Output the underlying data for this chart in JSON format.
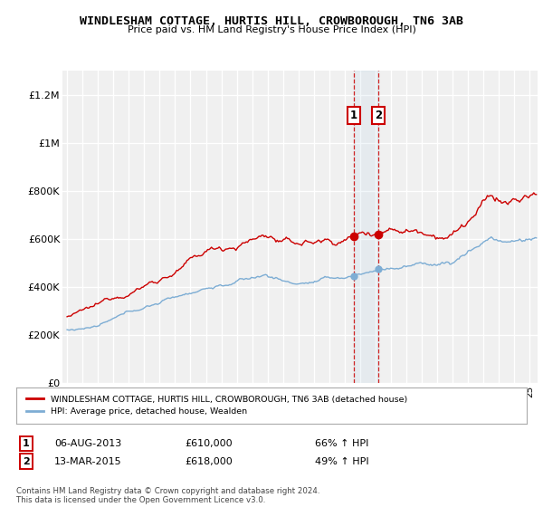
{
  "title": "WINDLESHAM COTTAGE, HURTIS HILL, CROWBOROUGH, TN6 3AB",
  "subtitle": "Price paid vs. HM Land Registry's House Price Index (HPI)",
  "ylabel_ticks": [
    "£0",
    "£200K",
    "£400K",
    "£600K",
    "£800K",
    "£1M",
    "£1.2M"
  ],
  "ytick_values": [
    0,
    200000,
    400000,
    600000,
    800000,
    1000000,
    1200000
  ],
  "ylim": [
    0,
    1300000
  ],
  "xlim_start": 1994.7,
  "xlim_end": 2025.5,
  "red_color": "#cc0000",
  "blue_color": "#7dadd4",
  "vline_color": "#cc0000",
  "sale1_year": 2013.58,
  "sale1_price": 610000,
  "sale1_label": "1",
  "sale1_date": "06-AUG-2013",
  "sale1_hpi": "66% ↑ HPI",
  "sale2_year": 2015.17,
  "sale2_price": 618000,
  "sale2_label": "2",
  "sale2_date": "13-MAR-2015",
  "sale2_hpi": "49% ↑ HPI",
  "legend_red": "WINDLESHAM COTTAGE, HURTIS HILL, CROWBOROUGH, TN6 3AB (detached house)",
  "legend_blue": "HPI: Average price, detached house, Wealden",
  "footnote": "Contains HM Land Registry data © Crown copyright and database right 2024.\nThis data is licensed under the Open Government Licence v3.0.",
  "background_color": "#f0f0f0"
}
